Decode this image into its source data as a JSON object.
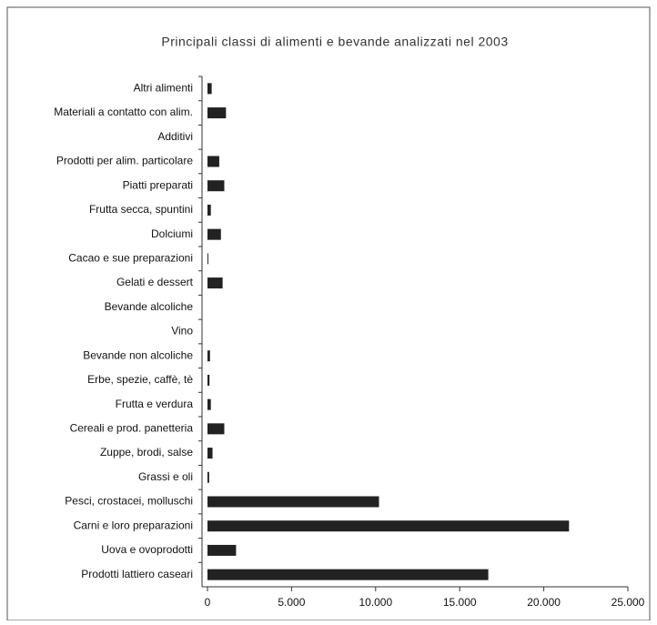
{
  "chart_data": {
    "type": "bar",
    "orientation": "horizontal",
    "title": "Principali classi di alimenti e bevande analizzati nel 2003",
    "categories": [
      "Altri alimenti",
      "Materiali a contatto con alim.",
      "Additivi",
      "Prodotti per alim. particolare",
      "Piatti preparati",
      "Frutta secca, spuntini",
      "Dolciumi",
      "Cacao e sue preparazioni",
      "Gelati e dessert",
      "Bevande alcoliche",
      "Vino",
      "Bevande non alcoliche",
      "Erbe, spezie, caffè, tè",
      "Frutta e verdura",
      "Cereali e prod. panetteria",
      "Zuppe, brodi, salse",
      "Grassi e oli",
      "Pesci, crostacei, molluschi",
      "Carni e loro preparazioni",
      "Uova e ovoprodotti",
      "Prodotti lattiero caseari"
    ],
    "values": [
      250,
      1100,
      0,
      700,
      1000,
      200,
      800,
      50,
      900,
      0,
      0,
      150,
      120,
      200,
      1000,
      300,
      100,
      10200,
      21500,
      1700,
      16700
    ],
    "color": "#222222",
    "xlim": [
      0,
      25000
    ],
    "xticks": [
      0,
      {
        "value": 5000,
        "label": "5.000"
      },
      {
        "value": 10000,
        "label": "10.000"
      },
      {
        "value": 15000,
        "label": "15.000"
      },
      {
        "value": 20000,
        "label": "20.000"
      },
      {
        "value": 25000,
        "label": "25.000"
      }
    ],
    "grid": false
  }
}
